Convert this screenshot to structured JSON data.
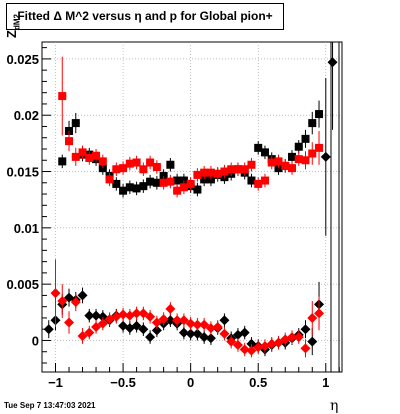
{
  "title": "Fitted Δ M^2 versus η and p for Global pion+",
  "ylabel_main": "Z",
  "ylabel_sub": "dM2",
  "xlabel": "η",
  "timestamp": "Tue Sep  7 13:47:03 2021",
  "chart_data": {
    "type": "scatter",
    "title": "Fitted Δ M^2 versus η and p for Global pion+",
    "xlabel": "η",
    "ylabel": "Z_dM2",
    "xlim": [
      -1.1,
      1.12
    ],
    "ylim": [
      -0.0028,
      0.0265
    ],
    "x_ticks": [
      -1,
      -0.5,
      0,
      0.5,
      1
    ],
    "x_tick_labels": [
      "−1",
      "−0.5",
      "0",
      "0.5",
      "1"
    ],
    "y_ticks": [
      0,
      0.005,
      0.01,
      0.015,
      0.02,
      0.025
    ],
    "y_tick_labels": [
      "0",
      "0.005",
      "0.01",
      "0.015",
      "0.02",
      "0.025"
    ],
    "grid": true,
    "colors": {
      "black_series": "#000000",
      "red_series": "#ff0000"
    },
    "series": [
      {
        "marker": "square",
        "color": "#000000",
        "x": [
          -0.95,
          -0.9,
          -0.85,
          -0.8,
          -0.75,
          -0.7,
          -0.65,
          -0.6,
          -0.55,
          -0.5,
          -0.45,
          -0.4,
          -0.35,
          -0.3,
          -0.25,
          -0.2,
          -0.15,
          -0.1,
          -0.05,
          0,
          0.05,
          0.1,
          0.15,
          0.2,
          0.25,
          0.3,
          0.35,
          0.4,
          0.45,
          0.5,
          0.55,
          0.6,
          0.65,
          0.7,
          0.75,
          0.8,
          0.85,
          0.9,
          0.95
        ],
        "y": [
          0.0159,
          0.0186,
          0.0193,
          0.0165,
          0.0165,
          0.0161,
          0.0153,
          0.0146,
          0.0139,
          0.0133,
          0.0136,
          0.0135,
          0.0137,
          0.0141,
          0.014,
          0.0146,
          0.0156,
          0.0142,
          0.0142,
          0.0137,
          0.0134,
          0.0143,
          0.0143,
          0.0147,
          0.0145,
          0.0148,
          0.0152,
          0.0149,
          0.0142,
          0.0171,
          0.0167,
          0.0161,
          0.0153,
          0.0155,
          0.0163,
          0.0172,
          0.0179,
          0.0193,
          0.0201
        ],
        "err": [
          0.0006,
          0.0009,
          0.0009,
          0.0006,
          0.0006,
          0.0006,
          0.0006,
          0.0006,
          0.0006,
          0.0006,
          0.0006,
          0.0006,
          0.0006,
          0.0006,
          0.0006,
          0.0006,
          0.0006,
          0.0006,
          0.0006,
          0.0006,
          0.0006,
          0.0006,
          0.0006,
          0.0006,
          0.0006,
          0.0006,
          0.0006,
          0.0006,
          0.0006,
          0.0006,
          0.0006,
          0.0006,
          0.0006,
          0.0006,
          0.0006,
          0.0006,
          0.0008,
          0.001,
          0.0012
        ]
      },
      {
        "marker": "square",
        "color": "#ff0000",
        "x": [
          -0.95,
          -0.9,
          -0.85,
          -0.8,
          -0.75,
          -0.7,
          -0.65,
          -0.6,
          -0.55,
          -0.5,
          -0.45,
          -0.4,
          -0.35,
          -0.3,
          -0.25,
          -0.2,
          -0.15,
          -0.1,
          -0.05,
          0,
          0.05,
          0.1,
          0.15,
          0.2,
          0.25,
          0.3,
          0.35,
          0.4,
          0.45,
          0.5,
          0.55,
          0.6,
          0.65,
          0.7,
          0.75,
          0.8,
          0.85,
          0.9,
          0.95
        ],
        "y": [
          0.0217,
          0.0177,
          0.0163,
          0.0167,
          0.0162,
          0.0164,
          0.0159,
          0.0143,
          0.0152,
          0.0153,
          0.0157,
          0.0158,
          0.0152,
          0.0158,
          0.0154,
          0.014,
          0.0141,
          0.0133,
          0.0136,
          0.0139,
          0.0147,
          0.0149,
          0.0149,
          0.0148,
          0.015,
          0.0152,
          0.0152,
          0.0152,
          0.0156,
          0.0139,
          0.0142,
          0.0158,
          0.0159,
          0.0155,
          0.0153,
          0.0161,
          0.016,
          0.0166,
          0.0171
        ],
        "err": [
          0.0035,
          0.0009,
          0.0008,
          0.0006,
          0.0006,
          0.0006,
          0.0006,
          0.0006,
          0.0006,
          0.0006,
          0.0006,
          0.0006,
          0.0006,
          0.0006,
          0.0006,
          0.0006,
          0.0006,
          0.0006,
          0.0006,
          0.0006,
          0.0006,
          0.0006,
          0.0006,
          0.0006,
          0.0006,
          0.0006,
          0.0006,
          0.0006,
          0.0006,
          0.0006,
          0.0006,
          0.0006,
          0.0006,
          0.0006,
          0.0006,
          0.0006,
          0.0008,
          0.001,
          0.0015
        ]
      },
      {
        "marker": "diamond",
        "color": "#000000",
        "x": [
          -1.05,
          -1.0,
          -0.95,
          -0.9,
          -0.85,
          -0.8,
          -0.75,
          -0.7,
          -0.65,
          -0.6,
          -0.55,
          -0.5,
          -0.45,
          -0.4,
          -0.35,
          -0.3,
          -0.25,
          -0.2,
          -0.15,
          -0.1,
          -0.05,
          0,
          0.05,
          0.1,
          0.15,
          0.2,
          0.25,
          0.3,
          0.35,
          0.4,
          0.45,
          0.5,
          0.55,
          0.6,
          0.65,
          0.7,
          0.75,
          0.8,
          0.85,
          0.9,
          0.95,
          1.0,
          1.05
        ],
        "y": [
          0.001,
          0.0018,
          0.0032,
          0.0038,
          0.0036,
          0.004,
          0.0022,
          0.0022,
          0.0021,
          0.0018,
          0.0022,
          0.0013,
          0.0011,
          0.0013,
          0.001,
          0.0003,
          0.0009,
          0.0015,
          0.0018,
          0.0015,
          0.0007,
          0.0006,
          0.0006,
          0.0003,
          0.0002,
          0.0011,
          0.0018,
          0.0002,
          0.0005,
          0.0007,
          -0.0003,
          -0.0005,
          -0.0008,
          -0.0004,
          -0.0002,
          -0.0002,
          0.0002,
          0.0005,
          0.001,
          -0.0001,
          0.0032,
          0.0163,
          0.0247
        ],
        "err": [
          0.0008,
          0.0009,
          0.0009,
          0.0008,
          0.0007,
          0.0007,
          0.0006,
          0.0006,
          0.0006,
          0.0006,
          0.0006,
          0.0006,
          0.0006,
          0.0006,
          0.0006,
          0.0006,
          0.0006,
          0.0006,
          0.0006,
          0.0006,
          0.0006,
          0.0006,
          0.0006,
          0.0006,
          0.0006,
          0.0006,
          0.0006,
          0.0006,
          0.0006,
          0.0006,
          0.0006,
          0.0006,
          0.0006,
          0.0006,
          0.0006,
          0.0006,
          0.0006,
          0.0006,
          0.0008,
          0.0012,
          0.002,
          0.007,
          0.006
        ]
      },
      {
        "marker": "diamond",
        "color": "#ff0000",
        "x": [
          -1.0,
          -0.95,
          -0.9,
          -0.85,
          -0.8,
          -0.75,
          -0.7,
          -0.65,
          -0.6,
          -0.55,
          -0.5,
          -0.45,
          -0.4,
          -0.35,
          -0.3,
          -0.25,
          -0.2,
          -0.15,
          -0.1,
          -0.05,
          0,
          0.05,
          0.1,
          0.15,
          0.2,
          0.25,
          0.3,
          0.35,
          0.4,
          0.45,
          0.5,
          0.55,
          0.6,
          0.65,
          0.7,
          0.75,
          0.8,
          0.85,
          0.9,
          0.95
        ],
        "y": [
          0.0042,
          0.0035,
          0.0016,
          0.0034,
          0.0004,
          0.0007,
          0.0012,
          0.0015,
          0.0019,
          0.0021,
          0.0023,
          0.0022,
          0.0024,
          0.0024,
          0.0021,
          0.0016,
          0.0019,
          0.0028,
          0.0018,
          0.0018,
          0.0015,
          0.0014,
          0.0014,
          0.0011,
          0.0012,
          0.0006,
          -0.0001,
          -0.0004,
          -0.0008,
          -0.0009,
          -0.0006,
          -0.0005,
          -0.0003,
          -0.0002,
          0.0001,
          0.0003,
          0.0003,
          -0.0007,
          0.002,
          0.0024
        ],
        "err": [
          0.003,
          0.0015,
          0.001,
          0.0008,
          0.0007,
          0.0006,
          0.0006,
          0.0006,
          0.0006,
          0.0006,
          0.0006,
          0.0006,
          0.0006,
          0.0006,
          0.0006,
          0.0006,
          0.0006,
          0.0006,
          0.0006,
          0.0006,
          0.0006,
          0.0006,
          0.0006,
          0.0006,
          0.0006,
          0.0006,
          0.0006,
          0.0006,
          0.0006,
          0.0006,
          0.0006,
          0.0006,
          0.0006,
          0.0006,
          0.0006,
          0.0006,
          0.0006,
          0.0008,
          0.0015,
          0.0015
        ]
      }
    ]
  }
}
